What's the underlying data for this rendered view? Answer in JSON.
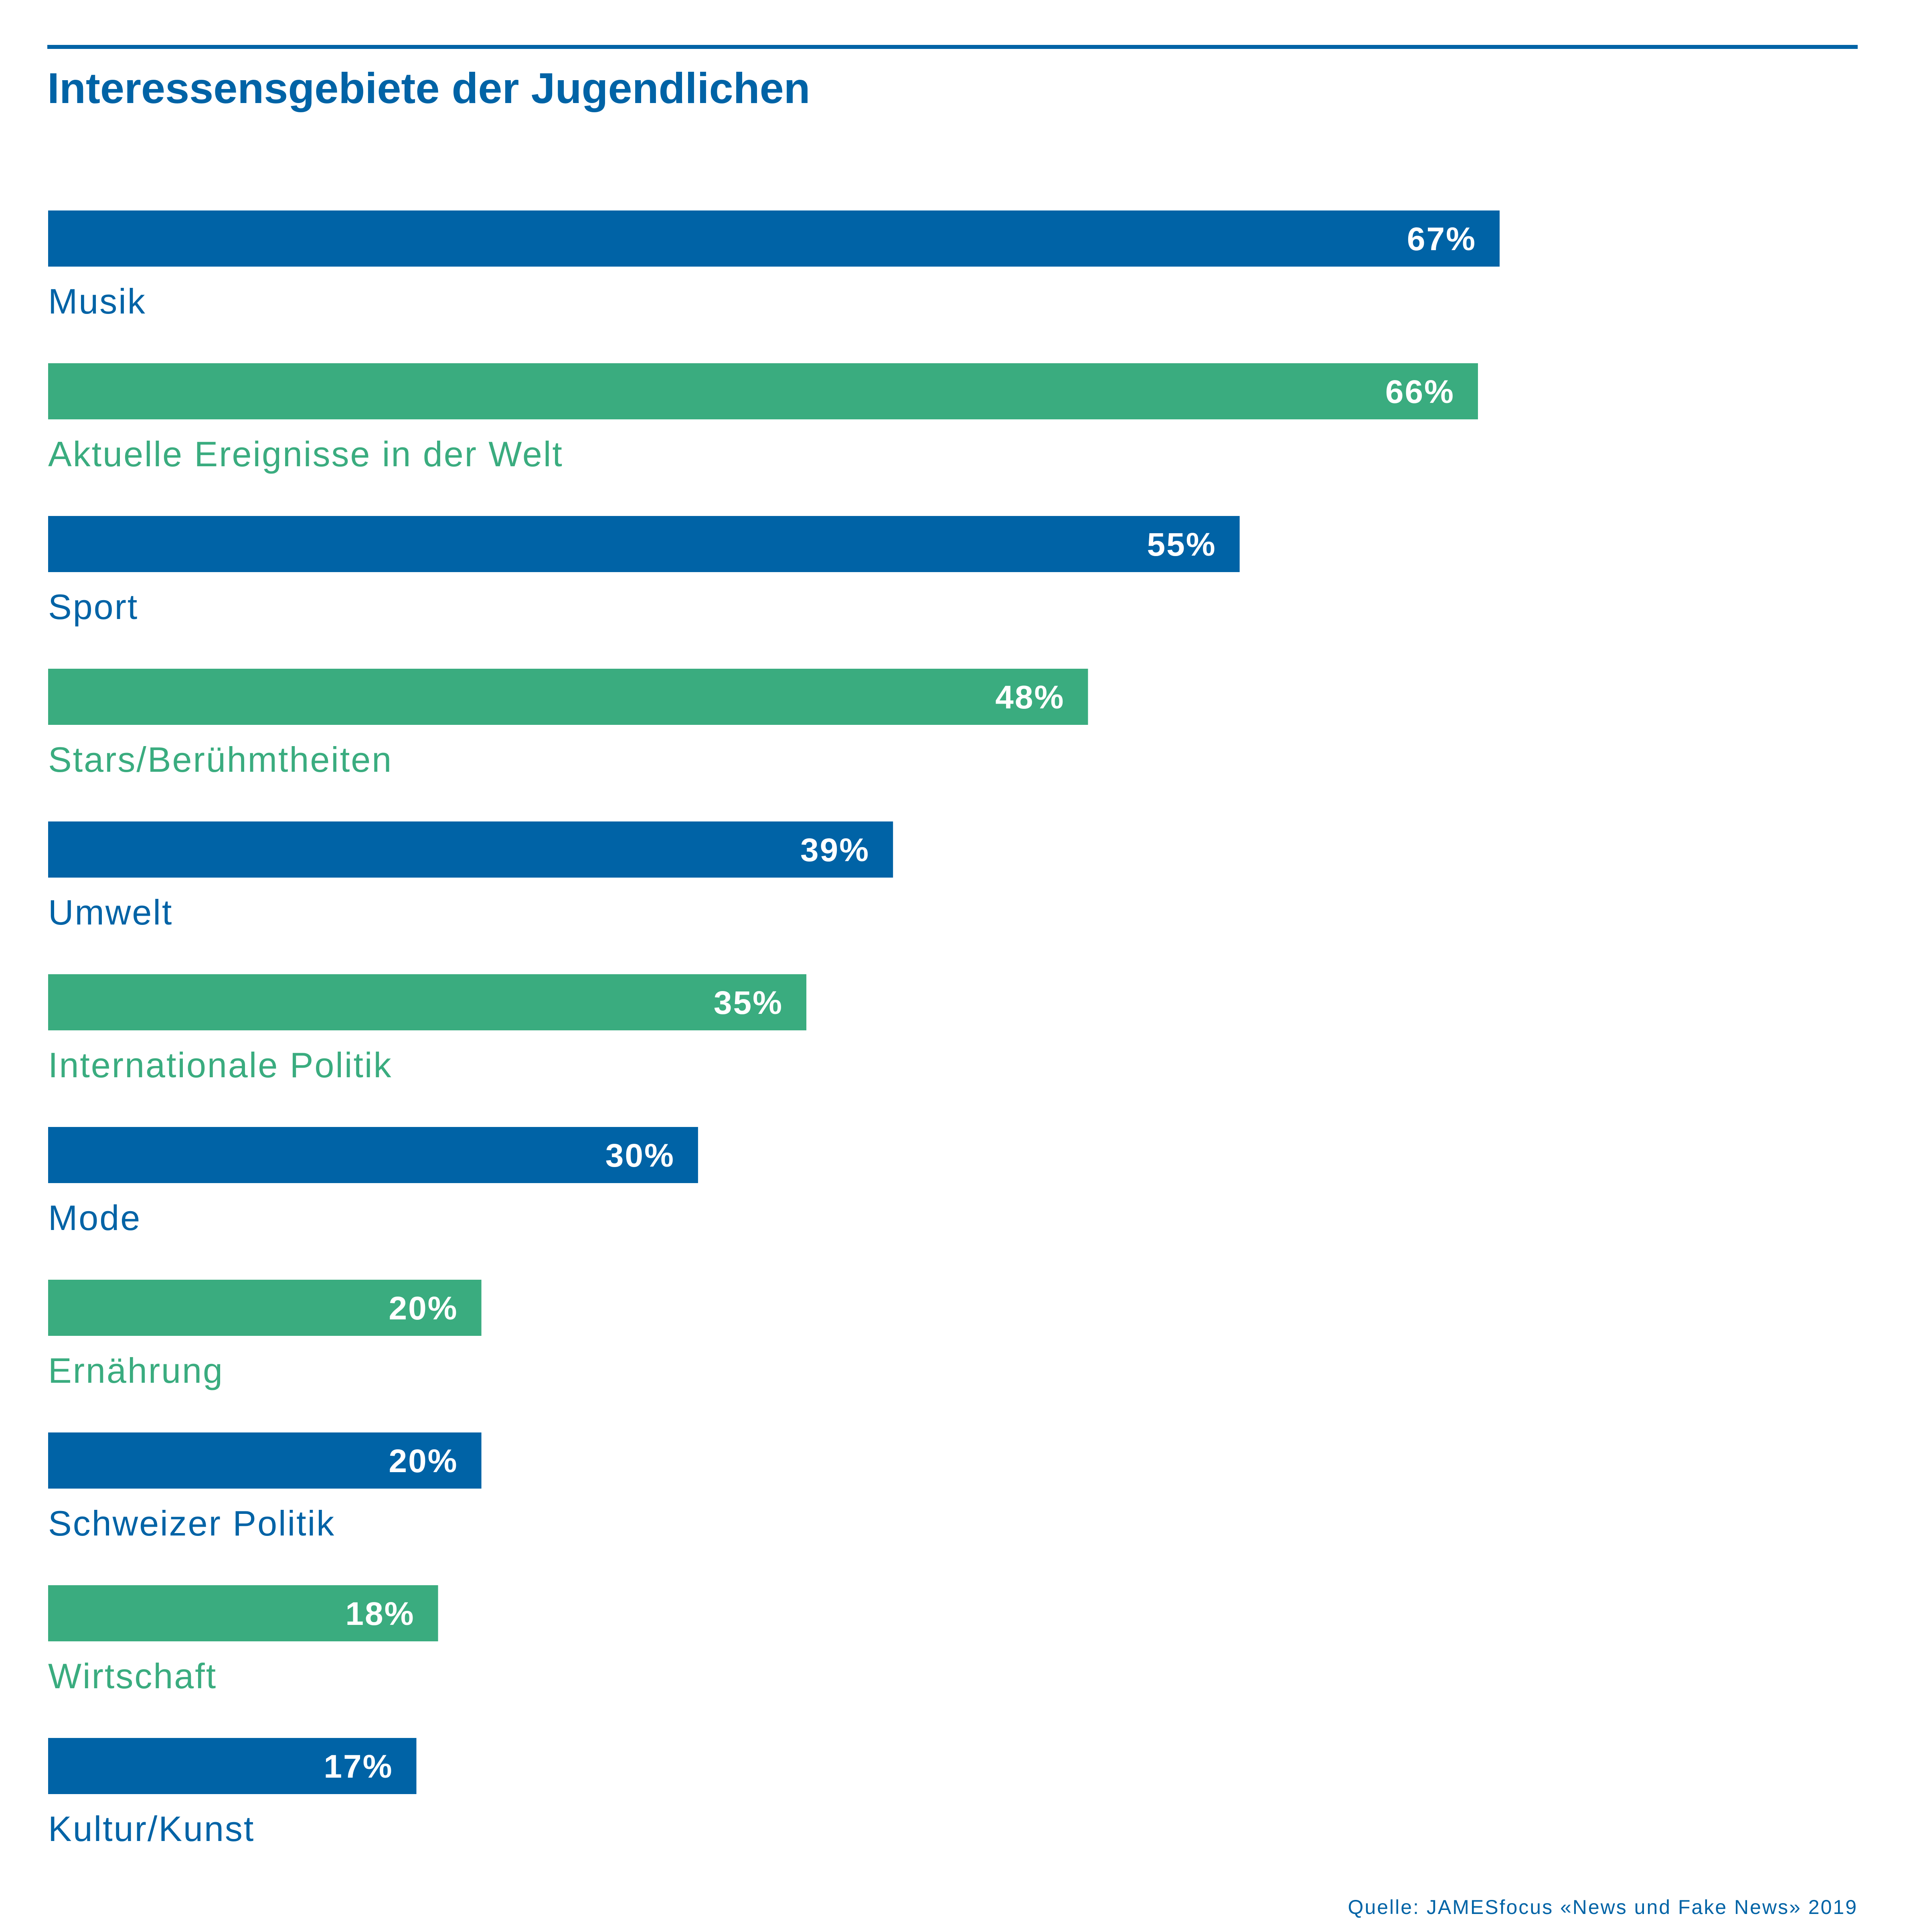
{
  "chart_data": {
    "type": "bar",
    "orientation": "horizontal",
    "title": "Interessensgebiete der Jugendlichen",
    "categories": [
      "Musik",
      "Aktuelle Ereignisse in der Welt",
      "Sport",
      "Stars/Berühmtheiten",
      "Umwelt",
      "Internationale Politik",
      "Mode",
      "Ernährung",
      "Schweizer Politik",
      "Wirtschaft",
      "Kultur/Kunst"
    ],
    "values": [
      67,
      66,
      55,
      48,
      39,
      35,
      30,
      20,
      20,
      18,
      17
    ],
    "value_labels": [
      "67%",
      "66%",
      "55%",
      "48%",
      "39%",
      "35%",
      "30%",
      "20%",
      "20%",
      "18%",
      "17%"
    ],
    "unit": "%",
    "xlim": [
      0,
      67
    ],
    "grid": false,
    "legend": "none",
    "colors": [
      "#0063a6",
      "#3aac7f"
    ],
    "source": "Quelle: JAMESfocus «News und Fake News» 2019"
  }
}
